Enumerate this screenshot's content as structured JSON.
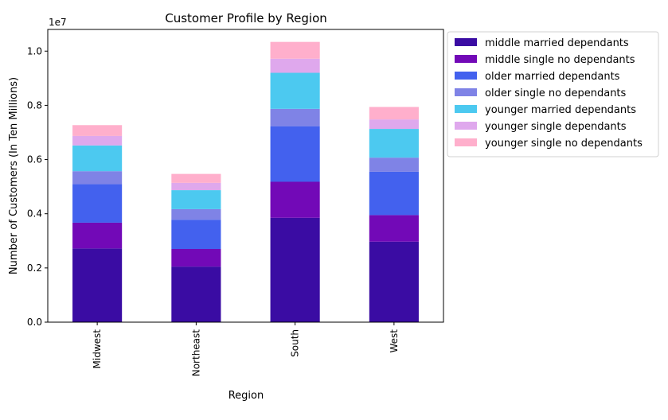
{
  "chart_data": {
    "type": "bar",
    "stacked": true,
    "title": "Customer Profile by Region",
    "xlabel": "Region",
    "ylabel": "Number of Customers (In Ten Millions)",
    "y_scale_label": "1e7",
    "ylim": [
      0,
      10800000
    ],
    "y_ticks": [
      0,
      2000000,
      4000000,
      6000000,
      8000000,
      10000000
    ],
    "y_tick_labels": [
      "0.0",
      "0.2",
      "0.4",
      "0.6",
      "0.8",
      "1.0"
    ],
    "categories": [
      "Midwest",
      "Northeast",
      "South",
      "West"
    ],
    "legend_position": "outside-right",
    "grid": false,
    "series": [
      {
        "name": "middle married dependants",
        "color": "#3a0ca3",
        "values": [
          2720000,
          2050000,
          3850000,
          2970000
        ]
      },
      {
        "name": "middle single no dependants",
        "color": "#7209b7",
        "values": [
          950000,
          650000,
          1330000,
          980000
        ]
      },
      {
        "name": "older married dependants",
        "color": "#4361ee",
        "values": [
          1420000,
          1080000,
          2050000,
          1600000
        ]
      },
      {
        "name": "older single no dependants",
        "color": "#7f83e6",
        "values": [
          480000,
          390000,
          640000,
          520000
        ]
      },
      {
        "name": "younger married dependants",
        "color": "#4cc9f0",
        "values": [
          950000,
          700000,
          1330000,
          1060000
        ]
      },
      {
        "name": "younger single dependants",
        "color": "#dfa8ed",
        "values": [
          350000,
          270000,
          520000,
          350000
        ]
      },
      {
        "name": "younger single no dependants",
        "color": "#ffafcc",
        "values": [
          400000,
          330000,
          620000,
          460000
        ]
      }
    ]
  }
}
